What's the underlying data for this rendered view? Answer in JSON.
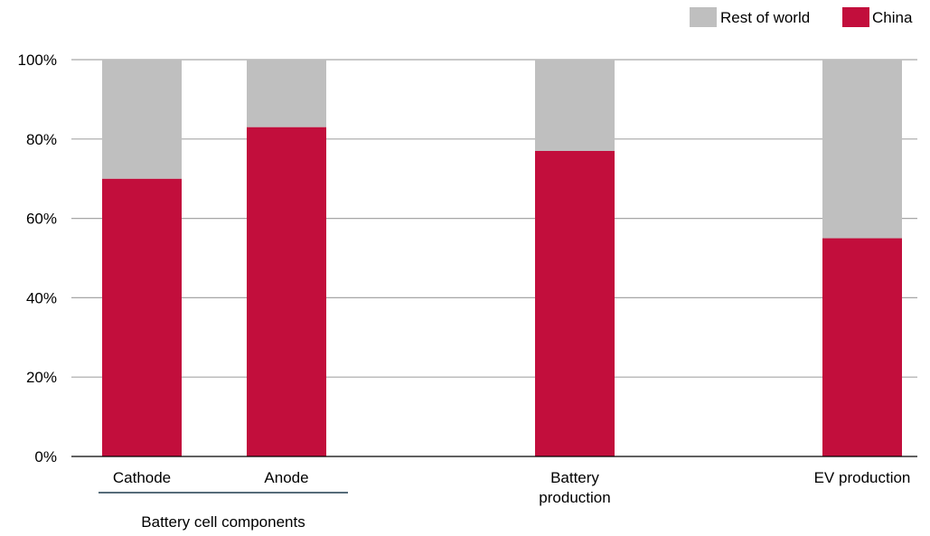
{
  "chart_data": {
    "type": "bar",
    "stacked": true,
    "title": "",
    "xlabel": "",
    "ylabel": "",
    "ylim": [
      0,
      100
    ],
    "yticks": [
      "0%",
      "20%",
      "40%",
      "60%",
      "80%",
      "100%"
    ],
    "grid": true,
    "legend_position": "top-right",
    "categories": [
      "Cathode",
      "Anode",
      "Battery production",
      "EV production"
    ],
    "category_label_lines": [
      [
        "Cathode"
      ],
      [
        "Anode"
      ],
      [
        "Battery",
        "production"
      ],
      [
        "EV production"
      ]
    ],
    "group_label": "Battery cell components",
    "group_categories": [
      "Cathode",
      "Anode"
    ],
    "series": [
      {
        "name": "China",
        "color": "#C20E3C",
        "values": [
          70,
          83,
          77,
          55
        ]
      },
      {
        "name": "Rest of world",
        "color": "#BFBFBF",
        "values": [
          30,
          17,
          23,
          45
        ]
      }
    ],
    "legend_order": [
      "Rest of world",
      "China"
    ],
    "colors": {
      "gridline": "#A6A6A6",
      "axis": "#000000",
      "group_underline": "#1F3B4D"
    }
  }
}
